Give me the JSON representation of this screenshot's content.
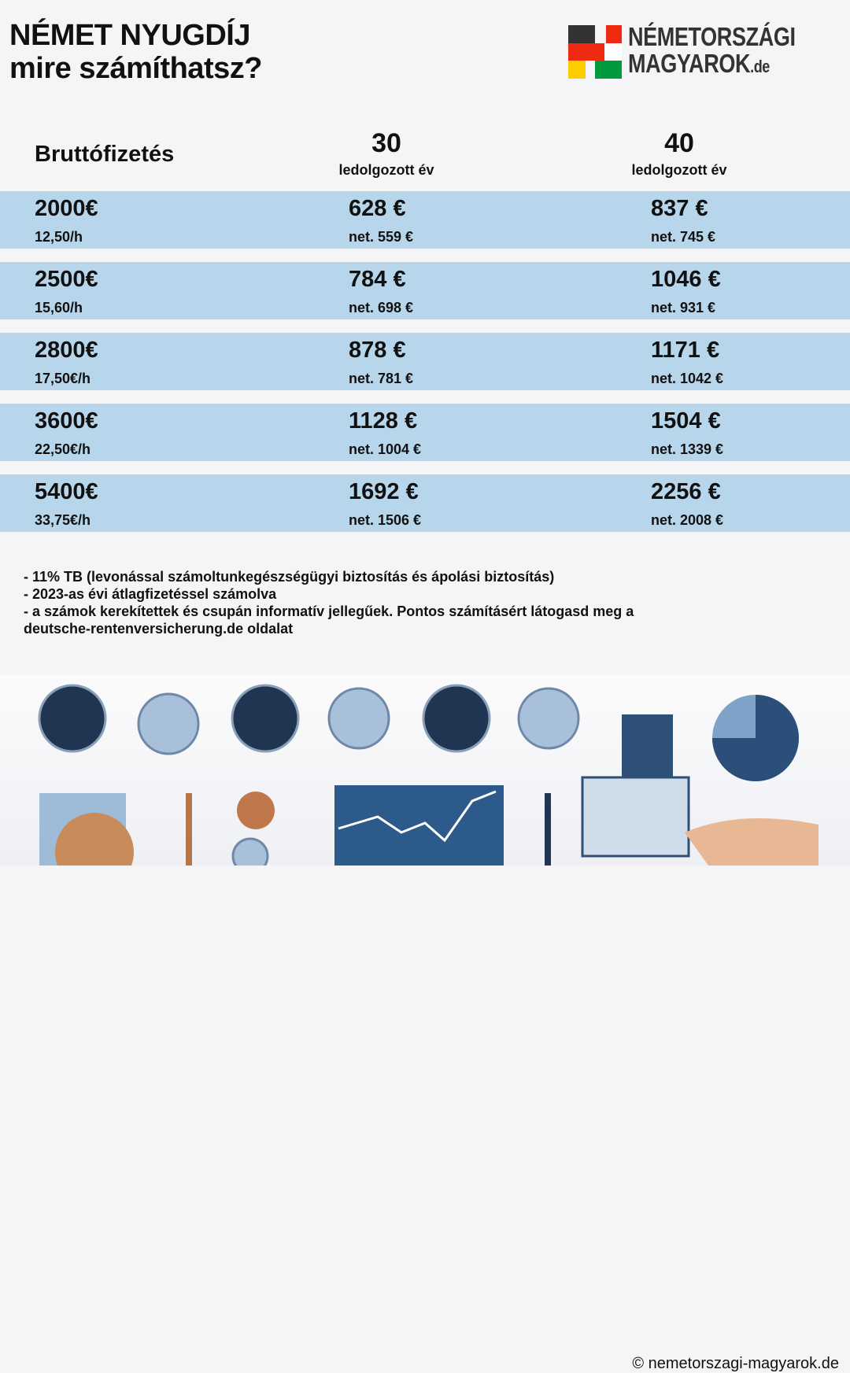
{
  "title": {
    "line1": "NÉMET NYUGDÍJ",
    "line2": "mire számíthatsz?"
  },
  "logo": {
    "line1": "NÉMETORSZÁGI",
    "line2": "MAGYAROK",
    "suffix": ".de",
    "colors": [
      "#333333",
      "#ee2a10",
      "#ffcc00",
      "#ffffff",
      "#009a3e"
    ]
  },
  "table": {
    "header": {
      "col1": "Bruttófizetés",
      "col2_num": "30",
      "col2_sub": "ledolgozott év",
      "col3_num": "40",
      "col3_sub": "ledolgozott év"
    },
    "row_color": "#b8d6eb",
    "rows": [
      {
        "gross": "2000€",
        "hourly": "12,50/h",
        "p30": "628 €",
        "n30": "net. 559 €",
        "p40": "837 €",
        "n40": "net. 745 €"
      },
      {
        "gross": "2500€",
        "hourly": "15,60/h",
        "p30": "784 €",
        "n30": "net. 698 €",
        "p40": "1046 €",
        "n40": "net. 931 €"
      },
      {
        "gross": "2800€",
        "hourly": "17,50€/h",
        "p30": "878 €",
        "n30": "net. 781 €",
        "p40": "1171 €",
        "n40": "net. 1042 €"
      },
      {
        "gross": "3600€",
        "hourly": "22,50€/h",
        "p30": "1128 €",
        "n30": "net. 1004 €",
        "p40": "1504 €",
        "n40": "net. 1339 €"
      },
      {
        "gross": "5400€",
        "hourly": "33,75€/h",
        "p30": "1692 €",
        "n30": "net. 1506 €",
        "p40": "2256 €",
        "n40": "net. 2008 €"
      }
    ]
  },
  "notes": [
    "- 11% TB (levonással számoltunkegészségügyi biztosítás és ápolási biztosítás)",
    "- 2023-as évi átlagfizetéssel számolva",
    "- a számok kerekítettek és csupán informatív jellegűek. Pontos számításért látogasd meg a",
    "deutsche-rentenversicherung.de oldalat"
  ],
  "copyright": "© nemetorszagi-magyarok.de"
}
